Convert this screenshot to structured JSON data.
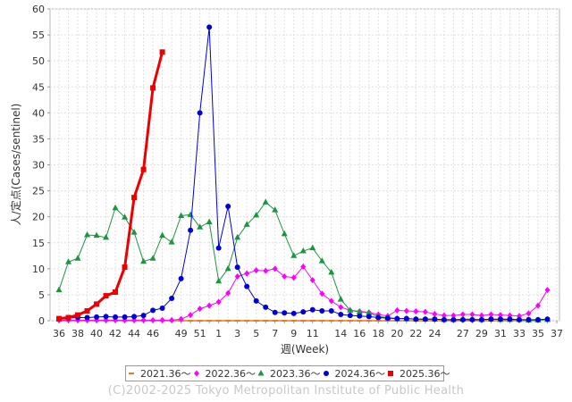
{
  "chart_data": {
    "type": "line",
    "xlabel": "週(Week)",
    "ylabel": "人/定点(Cases/sentinel)",
    "ylim": [
      0,
      60
    ],
    "yticks": [
      0,
      5,
      10,
      15,
      20,
      25,
      30,
      35,
      40,
      45,
      50,
      55,
      60
    ],
    "grid": true,
    "legend_position": "bottom",
    "x_tick_labels": [
      "36",
      "38",
      "40",
      "42",
      "44",
      "46",
      "49",
      "51",
      "1",
      "3",
      "5",
      "7",
      "9",
      "11",
      "14",
      "16",
      "18",
      "20",
      "22",
      "24",
      "27",
      "29",
      "31",
      "33",
      "35",
      "37"
    ],
    "x_tick_weeks": [
      "36",
      "37",
      "38",
      "39",
      "40",
      "41",
      "42",
      "43",
      "44",
      "45",
      "46",
      "47",
      "48",
      "49",
      "50",
      "51",
      "52",
      "1",
      "2",
      "3",
      "4",
      "5",
      "6",
      "7",
      "8",
      "9",
      "10",
      "11",
      "12",
      "13",
      "14",
      "15",
      "16",
      "17",
      "18",
      "19",
      "20",
      "21",
      "22",
      "23",
      "24",
      "25",
      "26",
      "27",
      "28",
      "29",
      "30",
      "31",
      "32",
      "33",
      "34",
      "35",
      "36",
      "37"
    ],
    "series": [
      {
        "name": "2021.36〜",
        "color": "#f07820",
        "marker": "dash",
        "values": [
          0.0,
          0.0,
          0.0,
          0.0,
          0.0,
          0.0,
          0.0,
          0.0,
          0.0,
          0.0,
          0.0,
          0.0,
          0.0,
          0.0,
          0.0,
          0.0,
          0.0,
          0.0,
          0.0,
          0.0,
          0.0,
          0.0,
          0.0,
          0.0,
          0.0,
          0.0,
          0.0,
          0.0,
          0.0,
          0.0,
          0.0,
          0.0,
          0.0,
          0.0,
          0.0,
          0.0,
          0.0,
          0.0,
          0.0,
          0.0,
          0.0,
          0.0,
          0.0,
          0.0,
          0.0,
          0.0,
          0.0,
          0.0,
          0.0,
          0.0,
          0.0,
          0.0
        ]
      },
      {
        "name": "2022.36〜",
        "color": "#ff00ff",
        "marker": "diamond",
        "values": [
          0.1,
          0.1,
          0.1,
          0.1,
          0.1,
          0.1,
          0.1,
          0.1,
          0.1,
          0.1,
          0.1,
          0.1,
          0.1,
          0.3,
          1.1,
          2.3,
          2.9,
          3.6,
          5.3,
          8.5,
          9.1,
          9.7,
          9.6,
          10.0,
          8.5,
          8.3,
          10.4,
          7.8,
          5.2,
          3.8,
          2.6,
          2.0,
          1.8,
          1.6,
          1.2,
          0.9,
          2.0,
          1.9,
          1.8,
          1.7,
          1.3,
          1.0,
          1.0,
          1.2,
          1.2,
          1.0,
          1.2,
          1.1,
          1.0,
          0.9,
          1.4,
          2.9,
          5.9
        ]
      },
      {
        "name": "2023.36〜",
        "color": "#1a9641",
        "marker": "triangle",
        "values": [
          5.9,
          11.3,
          12.0,
          16.5,
          16.4,
          16.0,
          21.7,
          19.9,
          17.0,
          11.4,
          12.0,
          16.4,
          15.1,
          20.2,
          20.4,
          18.0,
          19.0,
          7.6,
          10.0,
          16.0,
          18.5,
          20.3,
          22.8,
          21.3,
          16.7,
          12.5,
          13.4,
          14.0,
          11.5,
          9.3,
          4.1,
          2.0,
          1.7,
          1.5,
          0.8,
          0.6,
          0.4,
          0.4,
          0.3,
          0.3,
          0.3,
          0.2,
          0.2,
          0.3,
          0.3,
          0.2,
          0.3,
          0.2,
          0.2,
          0.2,
          0.1,
          0.1,
          0.2
        ]
      },
      {
        "name": "2024.36〜",
        "color": "#0000dd",
        "marker": "circle",
        "values": [
          0.4,
          0.5,
          0.6,
          0.6,
          0.7,
          0.8,
          0.7,
          0.7,
          0.8,
          1.0,
          2.0,
          2.4,
          4.3,
          8.1,
          17.4,
          40.0,
          56.5,
          14.0,
          22.0,
          10.3,
          6.6,
          3.8,
          2.6,
          1.6,
          1.5,
          1.4,
          1.7,
          2.1,
          1.9,
          1.9,
          1.2,
          1.0,
          0.9,
          0.8,
          0.6,
          0.5,
          0.4,
          0.4,
          0.3,
          0.3,
          0.3,
          0.2,
          0.2,
          0.2,
          0.2,
          0.2,
          0.3,
          0.3,
          0.3,
          0.2,
          0.2,
          0.2,
          0.3
        ]
      },
      {
        "name": "2025.36〜",
        "color": "#ee0000",
        "marker": "square",
        "values": [
          0.4,
          0.6,
          1.1,
          1.9,
          3.2,
          4.8,
          5.5,
          10.3,
          23.7,
          29.1,
          44.8,
          51.7
        ]
      }
    ]
  },
  "copyright": "(C)2002-2025 Tokyo Metropolitan Institute of Public Health"
}
